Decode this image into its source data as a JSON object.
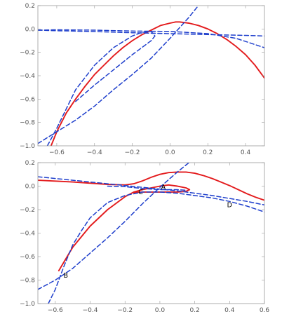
{
  "chart_data": [
    {
      "type": "line",
      "title": "",
      "xlabel": "",
      "ylabel": "",
      "xlim": [
        -0.7,
        0.5
      ],
      "ylim": [
        -1.0,
        0.2
      ],
      "x_ticks": [
        -0.6,
        -0.4,
        -0.2,
        0.0,
        0.2,
        0.4
      ],
      "x_tick_labels": [
        "−0.6",
        "−0.4",
        "−0.2",
        "0.0",
        "0.2",
        "0.4"
      ],
      "y_ticks": [
        0.2,
        0.0,
        -0.2,
        -0.4,
        -0.6,
        -0.8,
        -1.0
      ],
      "y_tick_labels": [
        "0.2",
        "0.0",
        "−0.2",
        "−0.4",
        "−0.6",
        "−0.8",
        "−1.0"
      ],
      "grid": false,
      "series": [
        {
          "color": "#e31a1c",
          "style": "solid",
          "x": [
            -0.63,
            -0.6,
            -0.55,
            -0.5,
            -0.45,
            -0.4,
            -0.35,
            -0.3,
            -0.25,
            -0.2,
            -0.15,
            -0.1,
            -0.05,
            0.0,
            0.03,
            0.05,
            0.1,
            0.15,
            0.2,
            0.25,
            0.3,
            0.35,
            0.4,
            0.45,
            0.5
          ],
          "y": [
            -1.0,
            -0.88,
            -0.72,
            -0.6,
            -0.49,
            -0.39,
            -0.31,
            -0.23,
            -0.16,
            -0.1,
            -0.05,
            -0.01,
            0.03,
            0.05,
            0.06,
            0.06,
            0.05,
            0.03,
            0.0,
            -0.04,
            -0.09,
            -0.15,
            -0.22,
            -0.31,
            -0.42
          ]
        },
        {
          "color": "#1f3fcc",
          "style": "dashed",
          "x": [
            -0.7,
            -0.6,
            -0.4,
            -0.2,
            0.0,
            0.2,
            0.4,
            0.5
          ],
          "y": [
            -0.01,
            -0.015,
            -0.022,
            -0.032,
            -0.04,
            -0.048,
            -0.055,
            -0.06
          ]
        },
        {
          "color": "#1f3fcc",
          "style": "dashed",
          "x": [
            -0.7,
            -0.6,
            -0.4,
            -0.2,
            -0.05,
            0.0,
            0.2,
            0.35,
            0.5
          ],
          "y": [
            -0.01,
            -0.007,
            -0.01,
            -0.018,
            -0.02,
            -0.021,
            -0.04,
            -0.08,
            -0.16
          ]
        },
        {
          "color": "#1f3fcc",
          "style": "dashed",
          "x": [
            -0.7,
            -0.6,
            -0.5,
            -0.4,
            -0.3,
            -0.2,
            -0.1,
            0.0,
            0.1,
            0.15
          ],
          "y": [
            -0.98,
            -0.88,
            -0.78,
            -0.66,
            -0.52,
            -0.39,
            -0.25,
            -0.08,
            0.1,
            0.2
          ]
        },
        {
          "color": "#1f3fcc",
          "style": "dashed",
          "x": [
            -0.65,
            -0.6,
            -0.5,
            -0.4,
            -0.3,
            -0.2,
            -0.15,
            -0.1,
            -0.08,
            -0.1,
            -0.2,
            -0.3,
            -0.4,
            -0.5
          ],
          "y": [
            -1.0,
            -0.85,
            -0.52,
            -0.31,
            -0.16,
            -0.06,
            -0.03,
            -0.02,
            -0.06,
            -0.1,
            -0.22,
            -0.35,
            -0.48,
            -0.62
          ]
        }
      ]
    },
    {
      "type": "line",
      "title": "",
      "xlabel": "",
      "ylabel": "",
      "xlim": [
        -0.7,
        0.6
      ],
      "ylim": [
        -1.0,
        0.2
      ],
      "x_ticks": [
        -0.6,
        -0.4,
        -0.2,
        0.0,
        0.2,
        0.4,
        0.6
      ],
      "x_tick_labels": [
        "−0.6",
        "−0.4",
        "−0.2",
        "0.0",
        "0.2",
        "0.4",
        "0.6"
      ],
      "y_ticks": [
        0.2,
        0.0,
        -0.2,
        -0.4,
        -0.6,
        -0.8,
        -1.0
      ],
      "y_tick_labels": [
        "0.2",
        "0.0",
        "−0.2",
        "−0.4",
        "−0.6",
        "−0.8",
        "−1.0"
      ],
      "grid": false,
      "annotations": [
        {
          "text": "A",
          "x": 0.02,
          "y": -0.01
        },
        {
          "text": "B",
          "x": -0.54,
          "y": -0.76
        },
        {
          "text": "C",
          "x": -0.11,
          "y": -0.05
        },
        {
          "text": "D",
          "x": 0.4,
          "y": -0.16
        }
      ],
      "series": [
        {
          "color": "#e31a1c",
          "style": "solid",
          "x": [
            -0.7,
            -0.5,
            -0.3,
            -0.2,
            -0.15,
            -0.1,
            -0.05,
            0.0,
            0.05,
            0.1,
            0.15,
            0.2,
            0.25,
            0.3,
            0.35,
            0.4,
            0.45,
            0.5,
            0.55,
            0.6
          ],
          "y": [
            0.05,
            0.035,
            0.015,
            0.01,
            0.02,
            0.045,
            0.075,
            0.1,
            0.115,
            0.12,
            0.12,
            0.11,
            0.09,
            0.065,
            0.035,
            0.005,
            -0.03,
            -0.065,
            -0.095,
            -0.12
          ]
        },
        {
          "color": "#e31a1c",
          "style": "solid",
          "x": [
            -0.58,
            -0.5,
            -0.4,
            -0.3,
            -0.2,
            -0.15,
            -0.1,
            -0.05,
            0.0,
            0.05,
            0.1,
            0.15,
            0.17,
            0.15,
            0.1,
            0.05,
            0.0,
            -0.05,
            -0.1,
            -0.15
          ],
          "y": [
            -0.72,
            -0.52,
            -0.34,
            -0.2,
            -0.09,
            -0.05,
            -0.03,
            -0.015,
            0.0,
            0.01,
            0.0,
            -0.015,
            -0.03,
            -0.045,
            -0.05,
            -0.05,
            -0.05,
            -0.05,
            -0.05,
            -0.055
          ]
        },
        {
          "color": "#1f3fcc",
          "style": "dashed",
          "x": [
            -0.7,
            -0.5,
            -0.3,
            -0.1,
            0.1,
            0.3,
            0.5,
            0.6
          ],
          "y": [
            0.08,
            0.05,
            0.02,
            -0.01,
            -0.04,
            -0.08,
            -0.13,
            -0.16
          ]
        },
        {
          "color": "#1f3fcc",
          "style": "dashed",
          "x": [
            -0.7,
            -0.6,
            -0.5,
            -0.4,
            -0.3,
            -0.2,
            -0.1,
            0.0,
            0.1,
            0.2
          ],
          "y": [
            -0.88,
            -0.8,
            -0.7,
            -0.57,
            -0.44,
            -0.3,
            -0.15,
            -0.01,
            0.12,
            0.24
          ]
        },
        {
          "color": "#1f3fcc",
          "style": "dashed",
          "x": [
            -0.64,
            -0.6,
            -0.55,
            -0.5,
            -0.45,
            -0.4,
            -0.3,
            -0.2,
            -0.1,
            0.0,
            0.1,
            0.2,
            0.3,
            0.4,
            0.5,
            0.6
          ],
          "y": [
            -1.0,
            -0.88,
            -0.68,
            -0.5,
            -0.38,
            -0.27,
            -0.14,
            -0.08,
            -0.05,
            -0.05,
            -0.06,
            -0.08,
            -0.1,
            -0.13,
            -0.17,
            -0.22
          ]
        },
        {
          "color": "#1f3fcc",
          "style": "dashed",
          "x": [
            -0.3,
            -0.2,
            -0.1,
            0.0,
            0.1,
            0.15
          ],
          "y": [
            0.0,
            -0.005,
            -0.02,
            -0.03,
            -0.03,
            -0.035
          ]
        }
      ]
    }
  ]
}
